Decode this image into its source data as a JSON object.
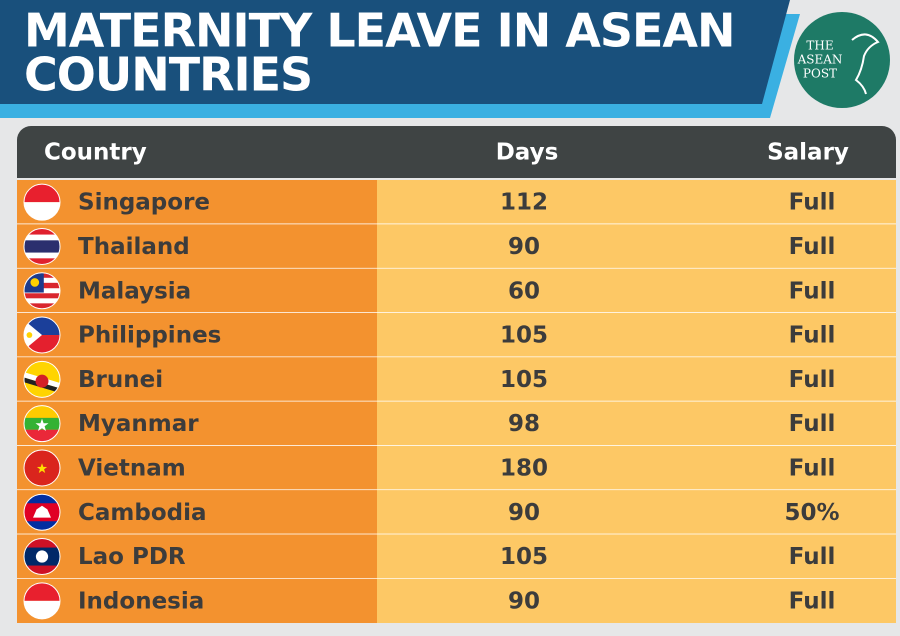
{
  "header": {
    "title": [
      "MATERNITY LEAVE IN ASEAN",
      "COUNTRIES"
    ],
    "logo": [
      "THE",
      "ASEAN",
      "POST"
    ]
  },
  "table": {
    "columns": [
      "Country",
      "Days",
      "Salary"
    ],
    "rows": [
      [
        "Singapore",
        112,
        "Full"
      ],
      [
        "Thailand",
        90,
        "Full"
      ],
      [
        "Malaysia",
        60,
        "Full"
      ],
      [
        "Philippines",
        105,
        "Full"
      ],
      [
        "Brunei",
        105,
        "Full"
      ],
      [
        "Myanmar",
        98,
        "Full"
      ],
      [
        "Vietnam",
        180,
        "Full"
      ],
      [
        "Cambodia",
        90,
        "50%"
      ],
      [
        "Lao PDR",
        105,
        "Full"
      ],
      [
        "Indonesia",
        90,
        "Full"
      ]
    ]
  }
}
